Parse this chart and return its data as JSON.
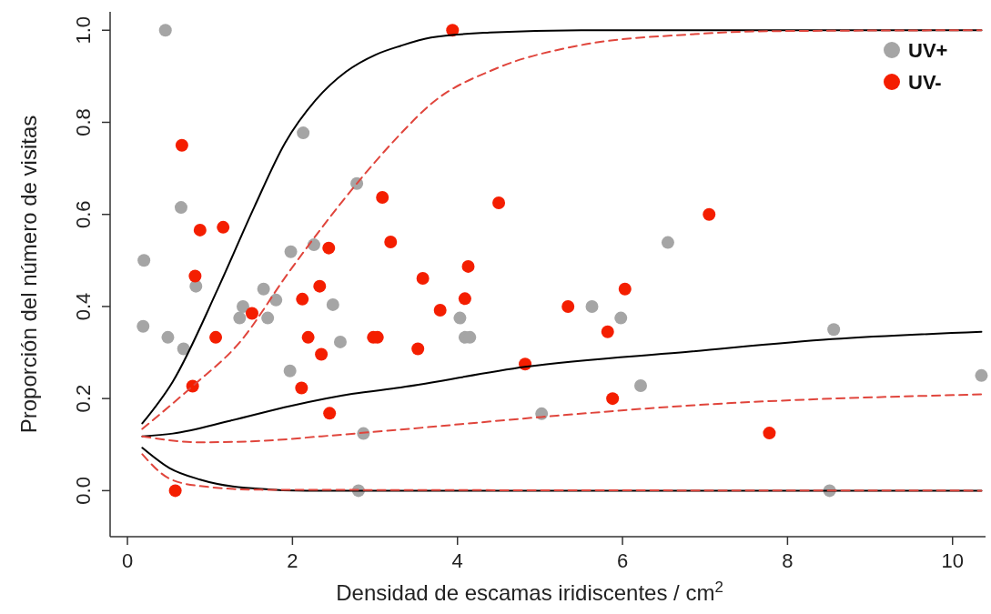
{
  "chart_data": {
    "type": "scatter",
    "xlabel": "Densidad de escamas iridiscentes / cm$^{2}$",
    "ylabel": "Proporción del número de visitas",
    "xlim": [
      -0.21,
      10.4
    ],
    "ylim": [
      -0.1,
      1.04
    ],
    "xticks": [
      0,
      2,
      4,
      6,
      8,
      10
    ],
    "yticks": [
      {
        "value": 0,
        "label": "0.0"
      },
      0.2,
      0.4,
      0.6,
      0.8,
      {
        "value": 1,
        "label": "1.0"
      }
    ],
    "grid": false,
    "legend": "top right",
    "series": [
      {
        "name": "UV+",
        "marker": "circle",
        "color": "#a5a5a5",
        "x": [
          0.19,
          0.2,
          0.46,
          0.49,
          0.65,
          0.68,
          0.83,
          1.36,
          1.4,
          1.65,
          1.7,
          1.8,
          1.97,
          1.98,
          2.13,
          2.26,
          2.49,
          2.58,
          2.78,
          2.8,
          2.86,
          4.03,
          4.09,
          4.15,
          5.02,
          5.63,
          5.98,
          6.22,
          6.55,
          8.51,
          8.56,
          10.35
        ],
        "values": [
          0.357,
          0.5,
          1.0,
          0.333,
          0.615,
          0.308,
          0.444,
          0.375,
          0.4,
          0.438,
          0.375,
          0.414,
          0.26,
          0.519,
          0.777,
          0.534,
          0.404,
          0.323,
          0.667,
          0.0,
          0.124,
          0.375,
          0.333,
          0.333,
          0.167,
          0.4,
          0.375,
          0.228,
          0.539,
          0.0,
          0.35,
          0.25
        ]
      },
      {
        "name": "UV-",
        "marker": "circle",
        "color": "#f41e00",
        "x": [
          0.58,
          0.66,
          0.79,
          0.82,
          0.88,
          1.07,
          1.16,
          1.51,
          2.11,
          2.12,
          2.19,
          2.33,
          2.35,
          2.44,
          2.45,
          2.98,
          3.03,
          3.09,
          3.19,
          3.52,
          3.58,
          3.79,
          3.94,
          4.09,
          4.13,
          4.5,
          4.82,
          5.34,
          5.82,
          5.88,
          6.03,
          7.05,
          7.78
        ],
        "values": [
          0.0,
          0.75,
          0.227,
          0.466,
          0.566,
          0.333,
          0.572,
          0.385,
          0.223,
          0.416,
          0.333,
          0.444,
          0.296,
          0.527,
          0.168,
          0.333,
          0.333,
          0.637,
          0.54,
          0.308,
          0.461,
          0.392,
          1.0,
          0.417,
          0.487,
          0.625,
          0.275,
          0.4,
          0.345,
          0.2,
          0.438,
          0.6,
          0.125
        ]
      },
      {
        "type": "line",
        "color": "#000000",
        "line_style": "solid",
        "x": [
          0.18,
          0.55,
          1.1,
          1.54,
          1.91,
          2.28,
          2.65,
          3.01,
          3.31,
          3.68,
          4.39,
          5.5,
          7,
          10.35
        ],
        "values": [
          0.146,
          0.237,
          0.44,
          0.617,
          0.755,
          0.848,
          0.91,
          0.947,
          0.966,
          0.984,
          0.995,
          1.0,
          1.0,
          1.0
        ]
      },
      {
        "type": "line",
        "color": "#000000",
        "line_style": "solid",
        "x": [
          0.18,
          0.55,
          1.25,
          1.98,
          2.72,
          3.31,
          4.82,
          6.82,
          8.54,
          10.35
        ],
        "values": [
          0.118,
          0.124,
          0.152,
          0.184,
          0.21,
          0.224,
          0.269,
          0.302,
          0.329,
          0.345
        ]
      },
      {
        "type": "line",
        "color": "#000000",
        "line_style": "solid",
        "x": [
          0.18,
          0.51,
          0.88,
          1.43,
          2.17,
          10.35
        ],
        "values": [
          0.093,
          0.049,
          0.024,
          0.006,
          0.0,
          0.0
        ]
      },
      {
        "type": "line",
        "color": "#e0453c",
        "line_style": "dashed",
        "x": [
          0.18,
          0.79,
          1.36,
          1.95,
          2.78,
          3.31,
          3.68,
          4.47,
          5.45,
          6.82,
          7.8,
          10.35
        ],
        "values": [
          0.134,
          0.227,
          0.322,
          0.473,
          0.667,
          0.775,
          0.84,
          0.917,
          0.966,
          0.991,
          0.998,
          1.0
        ]
      },
      {
        "type": "line",
        "color": "#e0453c",
        "line_style": "dashed",
        "x": [
          0.18,
          0.88,
          1.62,
          2.35,
          3.27,
          5.02,
          6.82,
          10.35
        ],
        "values": [
          0.118,
          0.105,
          0.108,
          0.118,
          0.132,
          0.16,
          0.185,
          0.209
        ]
      },
      {
        "type": "line",
        "color": "#e0453c",
        "line_style": "dashed",
        "x": [
          0.18,
          0.51,
          0.88,
          1.62,
          10.35
        ],
        "values": [
          0.079,
          0.026,
          0.01,
          0.002,
          0.0
        ]
      }
    ]
  }
}
